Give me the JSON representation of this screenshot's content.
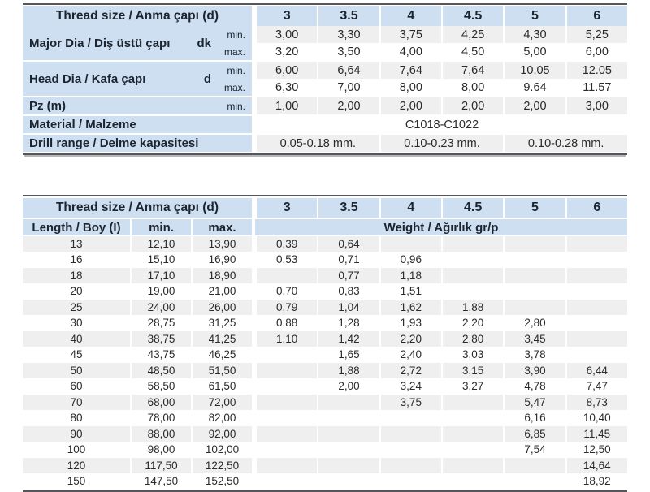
{
  "colors": {
    "header_blue": "#cddff0",
    "stripe_gray": "#efefef",
    "row_white": "#ffffff",
    "border_dark": "#55565c",
    "border_shadow": "#b5b6ba",
    "label_text": "#1c2430",
    "value_text": "#2a2a2a"
  },
  "table1": {
    "header_label": "Thread size / Anma çapı (d)",
    "sizes": [
      "3",
      "3.5",
      "4",
      "4.5",
      "5",
      "6"
    ],
    "groups": [
      {
        "label": "Major Dia / Diş üstü çapı",
        "symbol": "dk",
        "rows": [
          {
            "tag": "min.",
            "values": [
              "3,00",
              "3,30",
              "3,75",
              "4,25",
              "4,30",
              "5,25"
            ]
          },
          {
            "tag": "max.",
            "values": [
              "3,20",
              "3,50",
              "4,00",
              "4,50",
              "5,00",
              "6,00"
            ]
          }
        ]
      },
      {
        "label": "Head Dia / Kafa çapı",
        "symbol": "d",
        "rows": [
          {
            "tag": "min.",
            "values": [
              "6,00",
              "6,64",
              "7,64",
              "7,64",
              "10.05",
              "12.05"
            ]
          },
          {
            "tag": "max.",
            "values": [
              "6,30",
              "7,00",
              "8,00",
              "8,00",
              "9.64",
              "11.57"
            ]
          }
        ]
      },
      {
        "label": "Pz (m)",
        "symbol": "",
        "rows": [
          {
            "tag": "min.",
            "values": [
              "1,00",
              "2,00",
              "2,00",
              "2,00",
              "2,00",
              "3,00"
            ]
          }
        ]
      }
    ],
    "material": {
      "label": "Material / Malzeme",
      "value": "C1018-C1022"
    },
    "drill": {
      "label": "Drill range / Delme kapasitesi",
      "values": [
        "0.05-0.18 mm.",
        "0.10-0.23 mm.",
        "0.10-0.28 mm."
      ]
    }
  },
  "table2": {
    "header_label": "Thread size / Anma çapı (d)",
    "sizes": [
      "3",
      "3.5",
      "4",
      "4.5",
      "5",
      "6"
    ],
    "col_length": "Length / Boy (I)",
    "col_min": "min.",
    "col_max": "max.",
    "col_weight": "Weight / Ağırlık gr/p",
    "rows": [
      {
        "length": "13",
        "min": "12,10",
        "max": "13,90",
        "weights": [
          "0,39",
          "0,64",
          "",
          "",
          "",
          ""
        ]
      },
      {
        "length": "16",
        "min": "15,10",
        "max": "16,90",
        "weights": [
          "0,53",
          "0,71",
          "0,96",
          "",
          "",
          ""
        ]
      },
      {
        "length": "18",
        "min": "17,10",
        "max": "18,90",
        "weights": [
          "",
          "0,77",
          "1,18",
          "",
          "",
          ""
        ]
      },
      {
        "length": "20",
        "min": "19,00",
        "max": "21,00",
        "weights": [
          "0,70",
          "0,83",
          "1,51",
          "",
          "",
          ""
        ]
      },
      {
        "length": "25",
        "min": "24,00",
        "max": "26,00",
        "weights": [
          "0,79",
          "1,04",
          "1,62",
          "1,88",
          "",
          ""
        ]
      },
      {
        "length": "30",
        "min": "28,75",
        "max": "31,25",
        "weights": [
          "0,88",
          "1,28",
          "1,93",
          "2,20",
          "2,80",
          ""
        ]
      },
      {
        "length": "40",
        "min": "38,75",
        "max": "41,25",
        "weights": [
          "1,10",
          "1,42",
          "2,20",
          "2,80",
          "3,45",
          ""
        ]
      },
      {
        "length": "45",
        "min": "43,75",
        "max": "46,25",
        "weights": [
          "",
          "1,65",
          "2,40",
          "3,03",
          "3,78",
          ""
        ]
      },
      {
        "length": "50",
        "min": "48,50",
        "max": "51,50",
        "weights": [
          "",
          "1,88",
          "2,72",
          "3,15",
          "3,90",
          "6,44"
        ]
      },
      {
        "length": "60",
        "min": "58,50",
        "max": "61,50",
        "weights": [
          "",
          "2,00",
          "3,24",
          "3,27",
          "4,78",
          "7,47"
        ]
      },
      {
        "length": "70",
        "min": "68,00",
        "max": "72,00",
        "weights": [
          "",
          "",
          "3,75",
          "",
          "5,47",
          "8,73"
        ]
      },
      {
        "length": "80",
        "min": "78,00",
        "max": "82,00",
        "weights": [
          "",
          "",
          "",
          "",
          "6,16",
          "10,40"
        ]
      },
      {
        "length": "90",
        "min": "88,00",
        "max": "92,00",
        "weights": [
          "",
          "",
          "",
          "",
          "6,85",
          "11,45"
        ]
      },
      {
        "length": "100",
        "min": "98,00",
        "max": "102,00",
        "weights": [
          "",
          "",
          "",
          "",
          "7,54",
          "12,50"
        ]
      },
      {
        "length": "120",
        "min": "117,50",
        "max": "122,50",
        "weights": [
          "",
          "",
          "",
          "",
          "",
          "14,64"
        ]
      },
      {
        "length": "150",
        "min": "147,50",
        "max": "152,50",
        "weights": [
          "",
          "",
          "",
          "",
          "",
          "18,92"
        ]
      }
    ]
  }
}
